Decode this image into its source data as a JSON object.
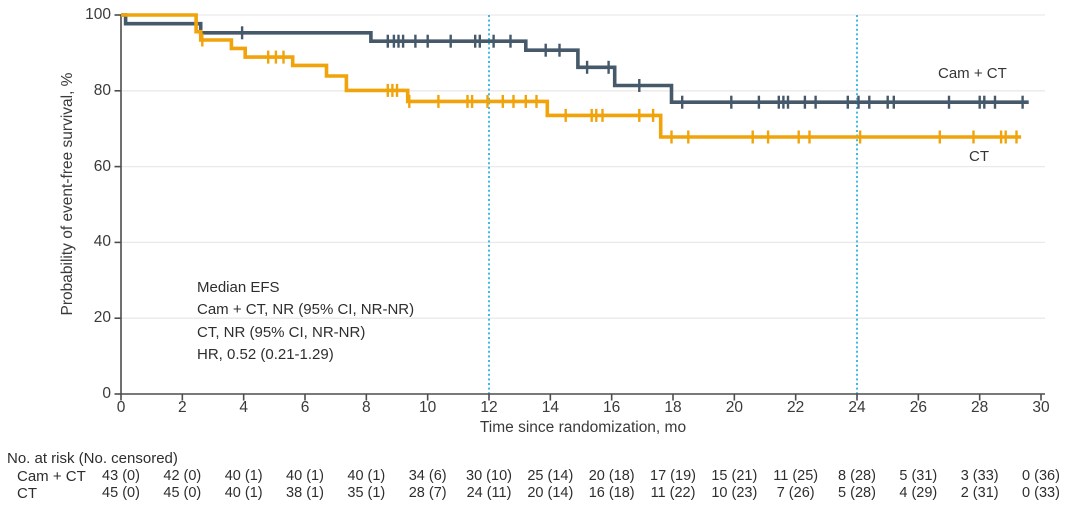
{
  "chart_data": {
    "type": "line",
    "subtype": "kaplan-meier-step",
    "title": "",
    "xlabel": "Time since randomization, mo",
    "ylabel": "Probability of event-free survival, %",
    "xlim": [
      0,
      30
    ],
    "ylim": [
      0,
      100
    ],
    "x_ticks": [
      0,
      2,
      4,
      6,
      8,
      10,
      12,
      14,
      16,
      18,
      20,
      22,
      24,
      26,
      28,
      30
    ],
    "y_ticks": [
      0,
      20,
      40,
      60,
      80,
      100
    ],
    "grid_y_values": [
      20,
      40,
      60,
      80,
      100
    ],
    "reference_lines_x": [
      12,
      24
    ],
    "legend_position": "inline-right",
    "annotations": [
      "Median EFS",
      "Cam + CT, NR (95% CI, NR-NR)",
      "CT, NR (95% CI, NR-NR)",
      "HR, 0.52 (0.21-1.29)"
    ],
    "colors": {
      "cam_ct": "#45596a",
      "ct": "#f0a30a",
      "reference_line": "#3fb9e5",
      "grid": "#e9e9e9",
      "axis": "#4d4d4d"
    },
    "series": [
      {
        "name": "Cam + CT",
        "color": "#45596a",
        "steps": [
          [
            0,
            100
          ],
          [
            0.15,
            97.7
          ],
          [
            2.6,
            95.3
          ],
          [
            8.15,
            93.1
          ],
          [
            13.2,
            90.7
          ],
          [
            14.9,
            86.2
          ],
          [
            16.1,
            81.4
          ],
          [
            17.95,
            77.0
          ]
        ],
        "end_time": 29.6,
        "censor_marks": [
          [
            3.95,
            95.3
          ],
          [
            8.7,
            93.1
          ],
          [
            8.9,
            93.1
          ],
          [
            9.05,
            93.1
          ],
          [
            9.2,
            93.1
          ],
          [
            9.6,
            93.1
          ],
          [
            10.0,
            93.1
          ],
          [
            10.75,
            93.1
          ],
          [
            11.55,
            93.1
          ],
          [
            11.7,
            93.1
          ],
          [
            12.15,
            93.1
          ],
          [
            12.7,
            93.1
          ],
          [
            13.85,
            90.7
          ],
          [
            14.3,
            90.7
          ],
          [
            15.2,
            86.2
          ],
          [
            15.9,
            86.2
          ],
          [
            16.9,
            81.4
          ],
          [
            18.3,
            77.0
          ],
          [
            19.9,
            77.0
          ],
          [
            20.8,
            77.0
          ],
          [
            21.45,
            77.0
          ],
          [
            21.6,
            77.0
          ],
          [
            21.75,
            77.0
          ],
          [
            22.3,
            77.0
          ],
          [
            22.65,
            77.0
          ],
          [
            23.7,
            77.0
          ],
          [
            24.05,
            77.0
          ],
          [
            24.4,
            77.0
          ],
          [
            25.0,
            77.0
          ],
          [
            25.2,
            77.0
          ],
          [
            27.0,
            77.0
          ],
          [
            28.0,
            77.0
          ],
          [
            28.15,
            77.0
          ],
          [
            28.5,
            77.0
          ],
          [
            29.4,
            77.0
          ]
        ]
      },
      {
        "name": "CT",
        "color": "#f0a30a",
        "steps": [
          [
            0,
            100
          ],
          [
            2.45,
            95.6
          ],
          [
            2.6,
            93.4
          ],
          [
            3.6,
            91.2
          ],
          [
            4.05,
            88.9
          ],
          [
            5.6,
            86.7
          ],
          [
            6.7,
            83.9
          ],
          [
            7.35,
            80.1
          ],
          [
            9.35,
            77.2
          ],
          [
            13.9,
            73.5
          ],
          [
            17.6,
            67.8
          ]
        ],
        "end_time": 29.35,
        "censor_marks": [
          [
            2.65,
            93.4
          ],
          [
            4.8,
            88.9
          ],
          [
            5.05,
            88.9
          ],
          [
            5.3,
            88.9
          ],
          [
            8.7,
            80.1
          ],
          [
            8.85,
            80.1
          ],
          [
            9.0,
            80.1
          ],
          [
            9.4,
            77.2
          ],
          [
            10.35,
            77.2
          ],
          [
            11.3,
            77.2
          ],
          [
            11.45,
            77.2
          ],
          [
            11.95,
            77.2
          ],
          [
            12.45,
            77.2
          ],
          [
            12.8,
            77.2
          ],
          [
            13.2,
            77.2
          ],
          [
            13.55,
            77.2
          ],
          [
            14.5,
            73.5
          ],
          [
            15.35,
            73.5
          ],
          [
            15.5,
            73.5
          ],
          [
            15.7,
            73.5
          ],
          [
            16.9,
            73.5
          ],
          [
            17.35,
            73.5
          ],
          [
            17.95,
            67.8
          ],
          [
            18.5,
            67.8
          ],
          [
            20.6,
            67.8
          ],
          [
            21.1,
            67.8
          ],
          [
            22.1,
            67.8
          ],
          [
            22.45,
            67.8
          ],
          [
            24.1,
            67.8
          ],
          [
            26.7,
            67.8
          ],
          [
            27.8,
            67.8
          ],
          [
            28.7,
            67.8
          ],
          [
            28.85,
            67.8
          ],
          [
            29.2,
            67.8
          ]
        ]
      }
    ]
  },
  "legend": {
    "cam_ct": "Cam + CT",
    "ct": "CT"
  },
  "risk_table": {
    "header": "No. at risk (No. censored)",
    "times": [
      0,
      2,
      4,
      6,
      8,
      10,
      12,
      14,
      16,
      18,
      20,
      22,
      24,
      26,
      28,
      30
    ],
    "rows": [
      {
        "label": "Cam + CT",
        "values": [
          "43 (0)",
          "42 (0)",
          "40 (1)",
          "40 (1)",
          "40 (1)",
          "34 (6)",
          "30 (10)",
          "25 (14)",
          "20 (18)",
          "17 (19)",
          "15 (21)",
          "11 (25)",
          "8 (28)",
          "5 (31)",
          "3 (33)",
          "0 (36)"
        ]
      },
      {
        "label": "CT",
        "values": [
          "45 (0)",
          "45 (0)",
          "40 (1)",
          "38 (1)",
          "35 (1)",
          "28 (7)",
          "24 (11)",
          "20 (14)",
          "16 (18)",
          "11 (22)",
          "10 (23)",
          "7 (26)",
          "5 (28)",
          "4 (29)",
          "2 (31)",
          "0 (33)"
        ]
      }
    ]
  }
}
